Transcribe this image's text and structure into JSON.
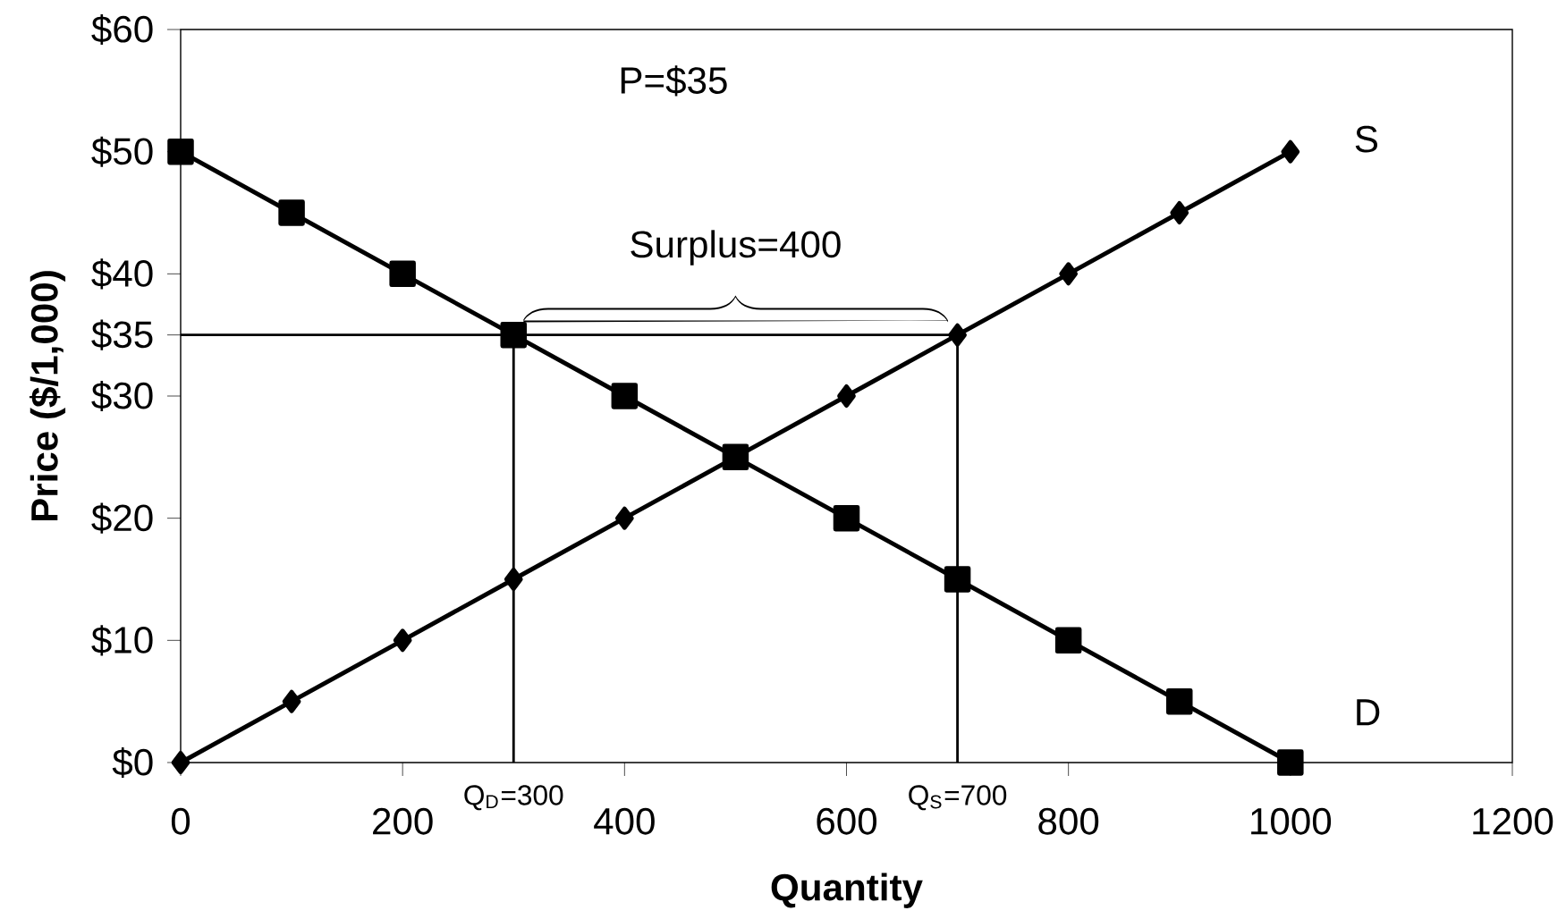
{
  "chart_data": {
    "type": "line",
    "xlabel": "Quantity",
    "ylabel": "Price ($/1,000)",
    "xlim": [
      0,
      1200
    ],
    "ylim": [
      0,
      60
    ],
    "xticks": [
      0,
      200,
      400,
      600,
      800,
      1000,
      1200
    ],
    "yticks": [
      {
        "value": 0,
        "label": "$0"
      },
      {
        "value": 10,
        "label": "$10"
      },
      {
        "value": 20,
        "label": "$20"
      },
      {
        "value": 30,
        "label": "$30"
      },
      {
        "value": 35,
        "label": "$35"
      },
      {
        "value": 40,
        "label": "$40"
      },
      {
        "value": 50,
        "label": "$50"
      },
      {
        "value": 60,
        "label": "$60"
      }
    ],
    "grid": false,
    "legend": false,
    "line_style": "solid",
    "series": [
      {
        "name": "D",
        "color": "#000000",
        "marker": "square",
        "x": [
          0,
          100,
          200,
          300,
          400,
          500,
          600,
          700,
          800,
          900,
          1000
        ],
        "values": [
          50,
          45,
          40,
          35,
          30,
          25,
          20,
          15,
          10,
          5,
          0
        ]
      },
      {
        "name": "S",
        "color": "#000000",
        "marker": "diamond",
        "x": [
          0,
          100,
          200,
          300,
          400,
          500,
          600,
          700,
          800,
          900,
          1000
        ],
        "values": [
          0,
          5,
          10,
          15,
          20,
          25,
          30,
          35,
          40,
          45,
          50
        ]
      }
    ],
    "ref_lines": [
      {
        "axis": "y",
        "value": 35
      },
      {
        "axis": "x",
        "value": 300,
        "label": "Q$_{D}$=300"
      },
      {
        "axis": "x",
        "value": 700,
        "label": "Q$_{S}$=700"
      }
    ],
    "annotations": [
      "P=$35",
      {
        "text": "Surplus=400",
        "x": 500,
        "y": 35
      }
    ]
  }
}
